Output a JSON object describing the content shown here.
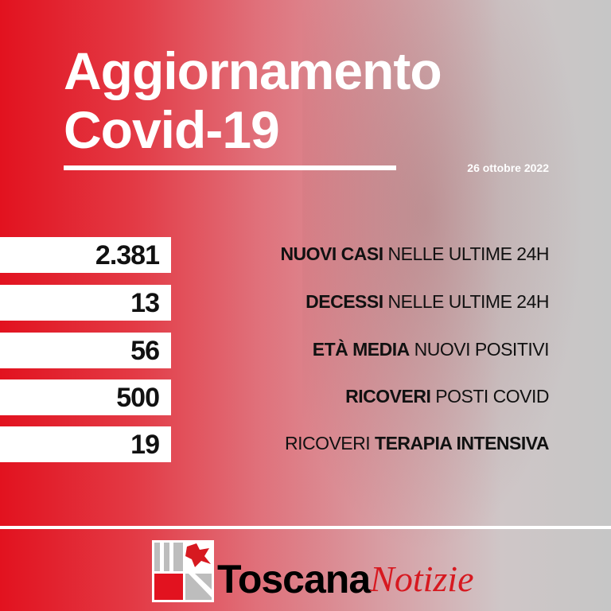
{
  "header": {
    "title_line1": "Aggiornamento",
    "title_line2": "Covid-19",
    "date": "26 ottobre 2022"
  },
  "stats": [
    {
      "value": "2.381",
      "label_bold": "NUOVI CASI",
      "label_regular": " NELLE ULTIME 24H"
    },
    {
      "value": "13",
      "label_bold": "DECESSI",
      "label_regular": " NELLE ULTIME 24H"
    },
    {
      "value": "56",
      "label_bold": "ETÀ MEDIA",
      "label_regular": " NUOVI POSITIVI"
    },
    {
      "value": "500",
      "label_bold": "RICOVERI",
      "label_regular": " POSTI COVID"
    },
    {
      "value": "19",
      "label_regular_prefix": "RICOVERI ",
      "label_bold": "TERAPIA INTENSIVA"
    }
  ],
  "footer": {
    "brand_bold": "Toscana",
    "brand_italic": "Notizie"
  },
  "colors": {
    "red": "#e2121f",
    "gray": "#c6c6c6",
    "brand_red": "#d71920"
  }
}
